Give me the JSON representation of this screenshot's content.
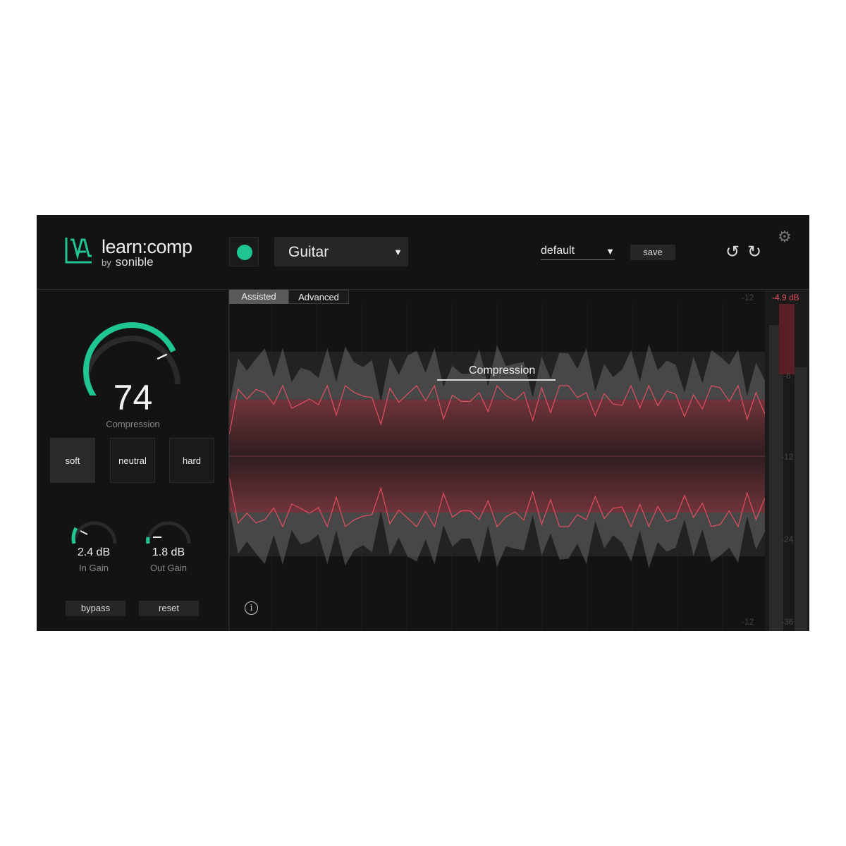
{
  "header": {
    "app_title": "learn:comp",
    "by": "by",
    "brand": "sonible",
    "profile": "Guitar",
    "preset": "default",
    "save_label": "save"
  },
  "left": {
    "compression_value": "74",
    "compression_label": "Compression",
    "compression_level": 0.74,
    "modes": [
      "soft",
      "neutral",
      "hard"
    ],
    "active_mode": "soft",
    "in_gain": {
      "value": "2.4 dB",
      "label": "In Gain"
    },
    "out_gain": {
      "value": "1.8 dB",
      "label": "Out Gain"
    },
    "bypass_label": "bypass",
    "reset_label": "reset"
  },
  "main": {
    "tabs": [
      "Assisted",
      "Advanced"
    ],
    "active_tab": "Assisted",
    "overlay_label": "Compression",
    "meter_reading": "-4.9 dB",
    "scale_left": [
      "-12",
      "-12"
    ],
    "scale_right": [
      "-6",
      "-12",
      "-24",
      "-36"
    ]
  },
  "colors": {
    "accent": "#1fc592",
    "reduction": "#e0505f",
    "background": "#131314"
  }
}
